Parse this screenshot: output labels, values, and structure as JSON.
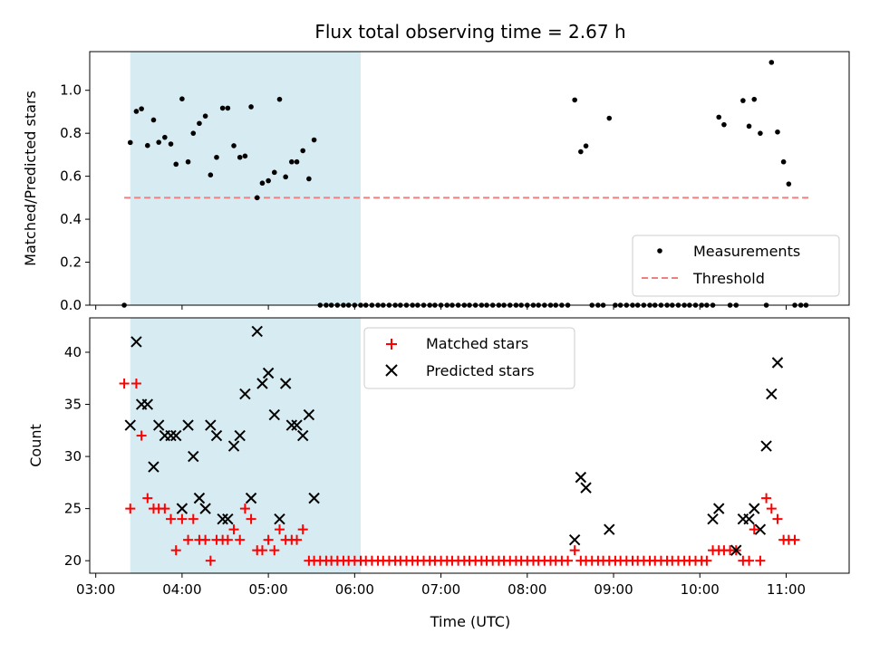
{
  "chart_data": {
    "title": "Flux total observing time = 2.67 h",
    "xlabel": "Time (UTC)",
    "x_ticks": [
      "03:00",
      "04:00",
      "05:00",
      "06:00",
      "07:00",
      "08:00",
      "09:00",
      "10:00",
      "11:00"
    ],
    "x_range_hours": [
      2.93,
      11.73
    ],
    "shaded_span_hours": [
      3.4,
      6.07
    ],
    "shaded_color": "#add8e6",
    "top": {
      "type": "scatter",
      "ylabel": "Matched/Predicted stars",
      "ylim": [
        0.0,
        1.18
      ],
      "y_ticks": [
        "0.0",
        "0.2",
        "0.4",
        "0.6",
        "0.8",
        "1.0"
      ],
      "legend_position": "lower-right",
      "threshold": {
        "name": "Threshold",
        "value": 0.5,
        "x_start": 3.33,
        "x_end": 11.27,
        "color": "#f08080"
      },
      "measurements": {
        "name": "Measurements",
        "color": "#000000",
        "points": [
          [
            3.33,
            0.0
          ],
          [
            3.4,
            0.757
          ],
          [
            3.47,
            0.902
          ],
          [
            3.53,
            0.914
          ],
          [
            3.6,
            0.743
          ],
          [
            3.67,
            0.862
          ],
          [
            3.73,
            0.758
          ],
          [
            3.8,
            0.781
          ],
          [
            3.87,
            0.75
          ],
          [
            3.93,
            0.656
          ],
          [
            4.0,
            0.96
          ],
          [
            4.07,
            0.667
          ],
          [
            4.13,
            0.8
          ],
          [
            4.2,
            0.846
          ],
          [
            4.27,
            0.88
          ],
          [
            4.33,
            0.606
          ],
          [
            4.4,
            0.688
          ],
          [
            4.47,
            0.917
          ],
          [
            4.53,
            0.917
          ],
          [
            4.6,
            0.742
          ],
          [
            4.67,
            0.688
          ],
          [
            4.73,
            0.694
          ],
          [
            4.8,
            0.923
          ],
          [
            4.87,
            0.5
          ],
          [
            4.93,
            0.568
          ],
          [
            5.0,
            0.579
          ],
          [
            5.07,
            0.618
          ],
          [
            5.13,
            0.958
          ],
          [
            5.2,
            0.597
          ],
          [
            5.27,
            0.667
          ],
          [
            5.33,
            0.667
          ],
          [
            5.4,
            0.719
          ],
          [
            5.47,
            0.588
          ],
          [
            5.53,
            0.769
          ],
          [
            5.6,
            0.0
          ],
          [
            5.67,
            0.0
          ],
          [
            5.73,
            0.0
          ],
          [
            5.8,
            0.0
          ],
          [
            5.87,
            0.0
          ],
          [
            5.93,
            0.0
          ],
          [
            6.0,
            0.0
          ],
          [
            6.07,
            0.0
          ],
          [
            6.13,
            0.0
          ],
          [
            6.2,
            0.0
          ],
          [
            6.27,
            0.0
          ],
          [
            6.33,
            0.0
          ],
          [
            6.4,
            0.0
          ],
          [
            6.47,
            0.0
          ],
          [
            6.53,
            0.0
          ],
          [
            6.6,
            0.0
          ],
          [
            6.67,
            0.0
          ],
          [
            6.73,
            0.0
          ],
          [
            6.8,
            0.0
          ],
          [
            6.87,
            0.0
          ],
          [
            6.93,
            0.0
          ],
          [
            7.0,
            0.0
          ],
          [
            7.07,
            0.0
          ],
          [
            7.13,
            0.0
          ],
          [
            7.2,
            0.0
          ],
          [
            7.27,
            0.0
          ],
          [
            7.33,
            0.0
          ],
          [
            7.4,
            0.0
          ],
          [
            7.47,
            0.0
          ],
          [
            7.53,
            0.0
          ],
          [
            7.6,
            0.0
          ],
          [
            7.67,
            0.0
          ],
          [
            7.73,
            0.0
          ],
          [
            7.8,
            0.0
          ],
          [
            7.87,
            0.0
          ],
          [
            7.93,
            0.0
          ],
          [
            8.0,
            0.0
          ],
          [
            8.07,
            0.0
          ],
          [
            8.13,
            0.0
          ],
          [
            8.2,
            0.0
          ],
          [
            8.27,
            0.0
          ],
          [
            8.33,
            0.0
          ],
          [
            8.4,
            0.0
          ],
          [
            8.47,
            0.0
          ],
          [
            8.55,
            0.955
          ],
          [
            8.62,
            0.714
          ],
          [
            8.68,
            0.741
          ],
          [
            8.75,
            0.0
          ],
          [
            8.82,
            0.0
          ],
          [
            8.88,
            0.0
          ],
          [
            8.95,
            0.87
          ],
          [
            9.02,
            0.0
          ],
          [
            9.08,
            0.0
          ],
          [
            9.15,
            0.0
          ],
          [
            9.22,
            0.0
          ],
          [
            9.28,
            0.0
          ],
          [
            9.35,
            0.0
          ],
          [
            9.42,
            0.0
          ],
          [
            9.48,
            0.0
          ],
          [
            9.55,
            0.0
          ],
          [
            9.62,
            0.0
          ],
          [
            9.68,
            0.0
          ],
          [
            9.75,
            0.0
          ],
          [
            9.82,
            0.0
          ],
          [
            9.88,
            0.0
          ],
          [
            9.95,
            0.0
          ],
          [
            10.02,
            0.0
          ],
          [
            10.08,
            0.0
          ],
          [
            10.15,
            0.0
          ],
          [
            10.22,
            0.875
          ],
          [
            10.28,
            0.84
          ],
          [
            10.35,
            0.0
          ],
          [
            10.42,
            0.0
          ],
          [
            10.5,
            0.952
          ],
          [
            10.57,
            0.833
          ],
          [
            10.63,
            0.958
          ],
          [
            10.7,
            0.8
          ],
          [
            10.77,
            0.0
          ],
          [
            10.83,
            1.13
          ],
          [
            10.9,
            0.806
          ],
          [
            10.97,
            0.667
          ],
          [
            11.03,
            0.564
          ],
          [
            11.1,
            0.0
          ],
          [
            11.17,
            0.0
          ],
          [
            11.23,
            0.0
          ]
        ]
      }
    },
    "bottom": {
      "type": "scatter",
      "ylabel": "Count",
      "ylim": [
        18.8,
        43.3
      ],
      "y_ticks": [
        "20",
        "25",
        "30",
        "35",
        "40"
      ],
      "legend_position": "upper-center",
      "matched": {
        "name": "Matched stars",
        "color": "#ff0000",
        "marker": "+",
        "points": [
          [
            3.33,
            37
          ],
          [
            3.4,
            25
          ],
          [
            3.47,
            37
          ],
          [
            3.53,
            32
          ],
          [
            3.6,
            26
          ],
          [
            3.67,
            25
          ],
          [
            3.73,
            25
          ],
          [
            3.8,
            25
          ],
          [
            3.87,
            24
          ],
          [
            3.93,
            21
          ],
          [
            4.0,
            24
          ],
          [
            4.07,
            22
          ],
          [
            4.13,
            24
          ],
          [
            4.2,
            22
          ],
          [
            4.27,
            22
          ],
          [
            4.33,
            20
          ],
          [
            4.4,
            22
          ],
          [
            4.47,
            22
          ],
          [
            4.53,
            22
          ],
          [
            4.6,
            23
          ],
          [
            4.67,
            22
          ],
          [
            4.73,
            25
          ],
          [
            4.8,
            24
          ],
          [
            4.87,
            21
          ],
          [
            4.93,
            21
          ],
          [
            5.0,
            22
          ],
          [
            5.07,
            21
          ],
          [
            5.13,
            23
          ],
          [
            5.2,
            22
          ],
          [
            5.27,
            22
          ],
          [
            5.33,
            22
          ],
          [
            5.4,
            23
          ],
          [
            5.47,
            20
          ],
          [
            5.53,
            20
          ],
          [
            5.6,
            20
          ],
          [
            5.67,
            20
          ],
          [
            5.73,
            20
          ],
          [
            5.8,
            20
          ],
          [
            5.87,
            20
          ],
          [
            5.93,
            20
          ],
          [
            6.0,
            20
          ],
          [
            6.07,
            20
          ],
          [
            6.13,
            20
          ],
          [
            6.2,
            20
          ],
          [
            6.27,
            20
          ],
          [
            6.33,
            20
          ],
          [
            6.4,
            20
          ],
          [
            6.47,
            20
          ],
          [
            6.53,
            20
          ],
          [
            6.6,
            20
          ],
          [
            6.67,
            20
          ],
          [
            6.73,
            20
          ],
          [
            6.8,
            20
          ],
          [
            6.87,
            20
          ],
          [
            6.93,
            20
          ],
          [
            7.0,
            20
          ],
          [
            7.07,
            20
          ],
          [
            7.13,
            20
          ],
          [
            7.2,
            20
          ],
          [
            7.27,
            20
          ],
          [
            7.33,
            20
          ],
          [
            7.4,
            20
          ],
          [
            7.47,
            20
          ],
          [
            7.53,
            20
          ],
          [
            7.6,
            20
          ],
          [
            7.67,
            20
          ],
          [
            7.73,
            20
          ],
          [
            7.8,
            20
          ],
          [
            7.87,
            20
          ],
          [
            7.93,
            20
          ],
          [
            8.0,
            20
          ],
          [
            8.07,
            20
          ],
          [
            8.13,
            20
          ],
          [
            8.2,
            20
          ],
          [
            8.27,
            20
          ],
          [
            8.33,
            20
          ],
          [
            8.4,
            20
          ],
          [
            8.47,
            20
          ],
          [
            8.55,
            21
          ],
          [
            8.62,
            20
          ],
          [
            8.68,
            20
          ],
          [
            8.75,
            20
          ],
          [
            8.82,
            20
          ],
          [
            8.88,
            20
          ],
          [
            8.95,
            20
          ],
          [
            9.02,
            20
          ],
          [
            9.08,
            20
          ],
          [
            9.15,
            20
          ],
          [
            9.22,
            20
          ],
          [
            9.28,
            20
          ],
          [
            9.35,
            20
          ],
          [
            9.42,
            20
          ],
          [
            9.48,
            20
          ],
          [
            9.55,
            20
          ],
          [
            9.62,
            20
          ],
          [
            9.68,
            20
          ],
          [
            9.75,
            20
          ],
          [
            9.82,
            20
          ],
          [
            9.88,
            20
          ],
          [
            9.95,
            20
          ],
          [
            10.02,
            20
          ],
          [
            10.08,
            20
          ],
          [
            10.15,
            21
          ],
          [
            10.22,
            21
          ],
          [
            10.28,
            21
          ],
          [
            10.35,
            21
          ],
          [
            10.42,
            21
          ],
          [
            10.5,
            20
          ],
          [
            10.57,
            20
          ],
          [
            10.63,
            23
          ],
          [
            10.7,
            20
          ],
          [
            10.77,
            26
          ],
          [
            10.83,
            25
          ],
          [
            10.9,
            24
          ],
          [
            10.97,
            22
          ],
          [
            11.03,
            22
          ],
          [
            11.1,
            22
          ]
        ]
      },
      "predicted": {
        "name": "Predicted stars",
        "color": "#000000",
        "marker": "x",
        "points": [
          [
            3.4,
            33
          ],
          [
            3.47,
            41
          ],
          [
            3.53,
            35
          ],
          [
            3.6,
            35
          ],
          [
            3.67,
            29
          ],
          [
            3.73,
            33
          ],
          [
            3.8,
            32
          ],
          [
            3.87,
            32
          ],
          [
            3.93,
            32
          ],
          [
            4.0,
            25
          ],
          [
            4.07,
            33
          ],
          [
            4.13,
            30
          ],
          [
            4.2,
            26
          ],
          [
            4.27,
            25
          ],
          [
            4.33,
            33
          ],
          [
            4.4,
            32
          ],
          [
            4.47,
            24
          ],
          [
            4.53,
            24
          ],
          [
            4.6,
            31
          ],
          [
            4.67,
            32
          ],
          [
            4.73,
            36
          ],
          [
            4.8,
            26
          ],
          [
            4.87,
            42
          ],
          [
            4.93,
            37
          ],
          [
            5.0,
            38
          ],
          [
            5.07,
            34
          ],
          [
            5.13,
            24
          ],
          [
            5.2,
            37
          ],
          [
            5.27,
            33
          ],
          [
            5.33,
            33
          ],
          [
            5.4,
            32
          ],
          [
            5.47,
            34
          ],
          [
            5.53,
            26
          ],
          [
            8.55,
            22
          ],
          [
            8.62,
            28
          ],
          [
            8.68,
            27
          ],
          [
            8.95,
            23
          ],
          [
            10.15,
            24
          ],
          [
            10.22,
            25
          ],
          [
            10.42,
            21
          ],
          [
            10.5,
            24
          ],
          [
            10.57,
            24
          ],
          [
            10.63,
            25
          ],
          [
            10.7,
            23
          ],
          [
            10.77,
            31
          ],
          [
            10.83,
            36
          ],
          [
            10.9,
            39
          ]
        ]
      }
    }
  }
}
